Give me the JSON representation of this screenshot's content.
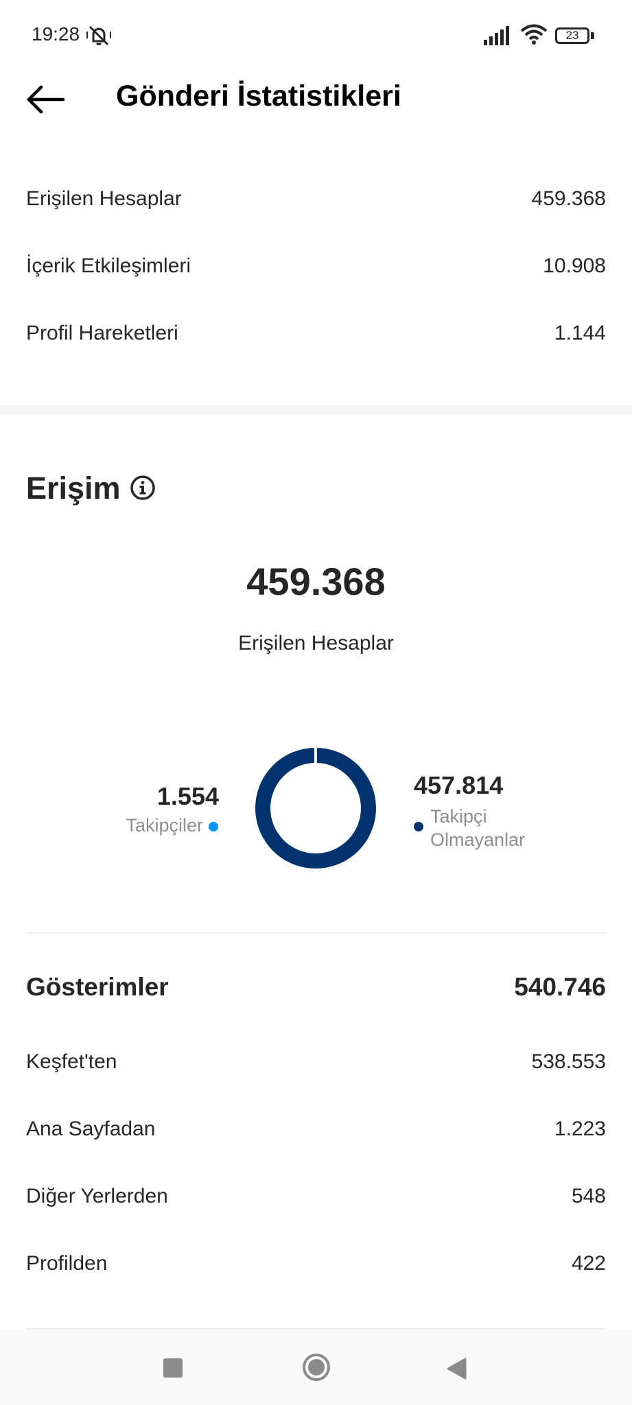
{
  "status_bar": {
    "time": "19:28",
    "battery": "23"
  },
  "header": {
    "title": "Gönderi İstatistikleri"
  },
  "summary": [
    {
      "label": "Erişilen Hesaplar",
      "value": "459.368"
    },
    {
      "label": "İçerik Etkileşimleri",
      "value": "10.908"
    },
    {
      "label": "Profil Hareketleri",
      "value": "1.144"
    }
  ],
  "reach": {
    "title": "Erişim",
    "total": "459.368",
    "total_label": "Erişilen Hesaplar",
    "followers": {
      "value": "1.554",
      "label": "Takipçiler"
    },
    "non_followers": {
      "value": "457.814",
      "label": "Takipçi Olmayanlar"
    }
  },
  "impressions": {
    "title": "Gösterimler",
    "total": "540.746",
    "rows": [
      {
        "label": "Keşfet'ten",
        "value": "538.553"
      },
      {
        "label": "Ana Sayfadan",
        "value": "1.223"
      },
      {
        "label": "Diğer Yerlerden",
        "value": "548"
      },
      {
        "label": "Profilden",
        "value": "422"
      }
    ]
  },
  "colors": {
    "followers": "#0095f6",
    "non_followers": "#00336e",
    "text": "#262626",
    "muted": "#8e8e8e"
  },
  "icons": {
    "back": "back-arrow-icon",
    "info": "info-icon",
    "mute": "notifications-off-icon",
    "signal": "signal-icon",
    "wifi": "wifi-icon",
    "battery": "battery-icon",
    "nav_recent": "recents-square-icon",
    "nav_home": "home-circle-icon",
    "nav_back": "back-triangle-icon"
  }
}
